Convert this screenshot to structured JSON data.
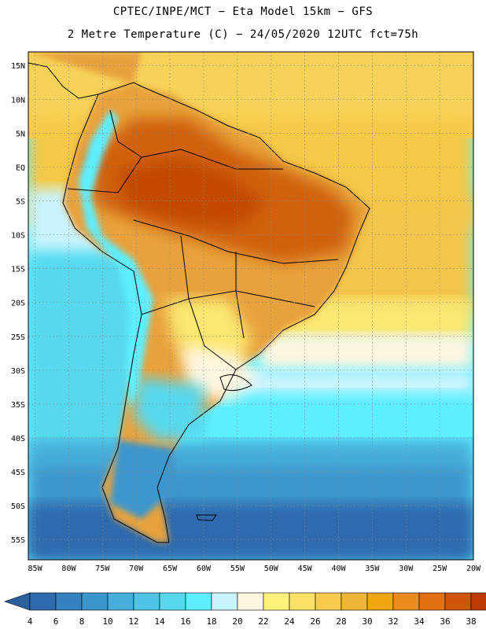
{
  "header": {
    "line1": "CPTEC/INPE/MCT −  Eta Model 15km − GFS",
    "line2": "2 Metre Temperature (C) − 24/05/2020 12UTC fct=75h"
  },
  "map": {
    "lat_labels": [
      "15N",
      "10N",
      "5N",
      "EQ",
      "5S",
      "10S",
      "15S",
      "20S",
      "25S",
      "30S",
      "35S",
      "40S",
      "45S",
      "50S",
      "55S"
    ],
    "lon_labels": [
      "85W",
      "80W",
      "75W",
      "70W",
      "65W",
      "60W",
      "55W",
      "50W",
      "45W",
      "40W",
      "35W",
      "30W",
      "25W",
      "20W"
    ],
    "lat_range": [
      -58,
      17
    ],
    "lon_range": [
      -86,
      -20
    ],
    "grid": true
  },
  "colorbar": {
    "labels": [
      "4",
      "6",
      "8",
      "10",
      "12",
      "14",
      "16",
      "18",
      "20",
      "22",
      "24",
      "26",
      "28",
      "30",
      "32",
      "34",
      "36",
      "38"
    ],
    "colors": [
      "#2e6aad",
      "#3580bf",
      "#3c96cc",
      "#47aedb",
      "#50c4e6",
      "#56d8ee",
      "#5defff",
      "#c8f4ff",
      "#fff6e0",
      "#fff27a",
      "#fbe166",
      "#f5cc4e",
      "#efb63a",
      "#f0a610",
      "#ec8b1e",
      "#e07012",
      "#cf5608",
      "#c03c06"
    ],
    "under_color": "#2a60a0",
    "over_color": "#b8340a"
  }
}
